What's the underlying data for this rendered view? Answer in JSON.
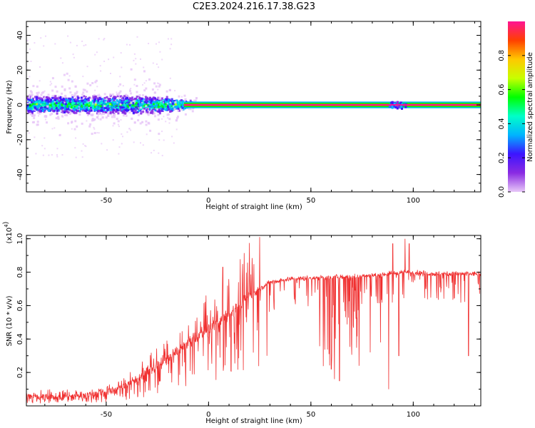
{
  "figure_title": "C2E3.2024.216.17.38.G23",
  "chart_data": [
    {
      "type": "heatmap",
      "xlabel": "Height of straight line (km)",
      "ylabel": "Frequency (Hz)",
      "xlim": [
        -89,
        133
      ],
      "ylim": [
        -50,
        48
      ],
      "xticks": [
        -50,
        0,
        50,
        100
      ],
      "yticks": [
        -40,
        -20,
        0,
        20,
        40
      ],
      "colorbar": {
        "label": "Normalized spectral amplitude",
        "range": [
          0.0,
          1.0
        ],
        "ticks": [
          0.0,
          0.2,
          0.4,
          0.6,
          0.8
        ],
        "colors": [
          "#e8c8f8",
          "#8a2be2",
          "#3c14ff",
          "#00b4ff",
          "#00ffc8",
          "#00ff00",
          "#c8ff00",
          "#ffc800",
          "#ff4000",
          "#ff1493"
        ]
      },
      "main_frequency_hz": 0,
      "regions": [
        {
          "x_range": [
            -89,
            -12
          ],
          "freq_spread_hz": [
            -12,
            12
          ],
          "outlier_spread_hz": [
            -30,
            40
          ],
          "amplitude": "low-mid"
        },
        {
          "x_range": [
            -12,
            133
          ],
          "freq_spread_hz": [
            -1.5,
            1.5
          ],
          "amplitude": "high"
        },
        {
          "x_range": [
            88,
            96
          ],
          "freq_spread_hz": [
            -4,
            4
          ],
          "amplitude": "mid"
        }
      ],
      "grid": false
    },
    {
      "type": "line",
      "xlabel": "Height of straight line (km)",
      "ylabel": "SNR (10 * v/v)",
      "y_scale_label": "(x10",
      "y_scale_exponent": "4",
      "xlim": [
        -89,
        133
      ],
      "ylim": [
        0.0,
        1.02
      ],
      "xticks": [
        -50,
        0,
        50,
        100
      ],
      "yticks": [
        0.2,
        0.4,
        0.6,
        0.8,
        1.0
      ],
      "series_color": "#f03030",
      "trend": {
        "x": [
          -89,
          -60,
          -45,
          -35,
          -25,
          -15,
          -5,
          5,
          15,
          20,
          25,
          30,
          40,
          60,
          80,
          95,
          110,
          133
        ],
        "y": [
          0.05,
          0.06,
          0.1,
          0.16,
          0.24,
          0.33,
          0.42,
          0.5,
          0.6,
          0.66,
          0.7,
          0.74,
          0.76,
          0.77,
          0.78,
          0.8,
          0.79,
          0.79
        ]
      },
      "deep_dips": [
        {
          "x": 28.5,
          "y": 0.3
        },
        {
          "x": 60,
          "y": 0.22
        },
        {
          "x": 61.5,
          "y": 0.16
        },
        {
          "x": 64,
          "y": 0.15
        },
        {
          "x": 72,
          "y": 0.07
        },
        {
          "x": 79,
          "y": 0.32
        },
        {
          "x": 84,
          "y": 0.38
        },
        {
          "x": 88,
          "y": 0.1
        },
        {
          "x": 93,
          "y": 0.3
        },
        {
          "x": 127,
          "y": 0.3
        }
      ],
      "spikes": [
        {
          "x": 7,
          "y": 0.83
        },
        {
          "x": 90,
          "y": 0.97
        },
        {
          "x": 96,
          "y": 1.0
        },
        {
          "x": 98,
          "y": 0.97
        }
      ],
      "grid": false
    }
  ]
}
